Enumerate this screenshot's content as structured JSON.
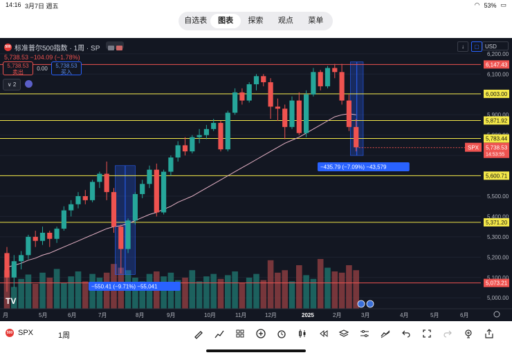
{
  "status": {
    "time": "14:16",
    "date": "3月7日 週五",
    "battery": "53%"
  },
  "tabs": [
    "自选表",
    "图表",
    "探索",
    "观点",
    "菜单"
  ],
  "active_tab": 1,
  "legend": {
    "logo": "500",
    "title": "标准普尔500指数 · 1周 · SP",
    "price_line": "5,738.53  −104.09 (−1.78%)",
    "sell_price": "5,738.53",
    "sell_label": "卖出",
    "spread": "0.00",
    "buy_price": "5,738.53",
    "buy_label": "买入",
    "collapse": "2"
  },
  "currency": "USD",
  "colors": {
    "up": "#26a69a",
    "down": "#ef5350",
    "bg": "#131722",
    "hline_yellow": "#f5e94a",
    "hline_red": "#ef5350",
    "ma": "#e8b4c8",
    "measure": "#2962ff"
  },
  "price_axis": {
    "ticks": [
      "6,200.00",
      "6,100.00",
      "6,000.00",
      "5,900.00",
      "5,800.00",
      "5,700.00",
      "5,600.00",
      "5,500.00",
      "5,400.00",
      "5,300.00",
      "5,200.00",
      "5,100.00",
      "5,000.00"
    ],
    "tick_values": [
      6200,
      6100,
      6000,
      5900,
      5800,
      5700,
      5600,
      5500,
      5400,
      5300,
      5200,
      5100,
      5000
    ]
  },
  "price_labels": [
    {
      "text": "6,147.43",
      "value": 6147.43,
      "style": "red"
    },
    {
      "text": "6,003.00",
      "value": 6003.0,
      "style": "yellow"
    },
    {
      "text": "5,871.92",
      "value": 5871.92,
      "style": "yellow"
    },
    {
      "text": "5,783.44",
      "value": 5783.44,
      "style": "yellow"
    },
    {
      "text": "5,600.71",
      "value": 5600.71,
      "style": "yellow"
    },
    {
      "text": "5,371.20",
      "value": 5371.2,
      "style": "yellow"
    },
    {
      "text": "5,073.21",
      "value": 5073.21,
      "style": "red"
    }
  ],
  "current": {
    "symbol": "SPX",
    "price": "5,738.53",
    "countdown": "14:53:55",
    "value": 5738.53
  },
  "time_axis": [
    "月",
    "5月",
    "6月",
    "7月",
    "8月",
    "9月",
    "10月",
    "11月",
    "12月",
    "2025",
    "2月",
    "3月",
    "4月",
    "5月",
    "6月"
  ],
  "measures": [
    {
      "label": "−550.41 (−9.71%) −55,041"
    },
    {
      "label": "−435.79 (−7.09%) −43,579"
    }
  ],
  "chart_data": {
    "type": "candlestick",
    "series": "SPX weekly",
    "ohlc": [
      [
        5220,
        5250,
        5030,
        5100
      ],
      [
        5100,
        5210,
        5050,
        5180
      ],
      [
        5180,
        5230,
        5140,
        5210
      ],
      [
        5210,
        5310,
        5190,
        5300
      ],
      [
        5300,
        5330,
        5250,
        5280
      ],
      [
        5280,
        5350,
        5260,
        5320
      ],
      [
        5320,
        5330,
        5250,
        5290
      ],
      [
        5290,
        5350,
        5270,
        5340
      ],
      [
        5340,
        5450,
        5330,
        5430
      ],
      [
        5430,
        5480,
        5400,
        5460
      ],
      [
        5460,
        5520,
        5440,
        5500
      ],
      [
        5500,
        5530,
        5460,
        5480
      ],
      [
        5480,
        5580,
        5470,
        5570
      ],
      [
        5570,
        5620,
        5540,
        5610
      ],
      [
        5610,
        5670,
        5480,
        5520
      ],
      [
        5520,
        5540,
        5320,
        5350
      ],
      [
        5350,
        5360,
        5120,
        5240
      ],
      [
        5240,
        5390,
        5220,
        5380
      ],
      [
        5380,
        5520,
        5360,
        5510
      ],
      [
        5510,
        5580,
        5490,
        5560
      ],
      [
        5560,
        5650,
        5540,
        5630
      ],
      [
        5630,
        5660,
        5400,
        5420
      ],
      [
        5420,
        5630,
        5410,
        5620
      ],
      [
        5620,
        5700,
        5600,
        5690
      ],
      [
        5690,
        5770,
        5670,
        5750
      ],
      [
        5750,
        5790,
        5700,
        5720
      ],
      [
        5720,
        5800,
        5710,
        5790
      ],
      [
        5790,
        5830,
        5760,
        5800
      ],
      [
        5800,
        5850,
        5780,
        5830
      ],
      [
        5830,
        5880,
        5820,
        5860
      ],
      [
        5860,
        5870,
        5720,
        5730
      ],
      [
        5730,
        5920,
        5720,
        5910
      ],
      [
        5910,
        6030,
        5900,
        6010
      ],
      [
        6010,
        6030,
        5950,
        5970
      ],
      [
        5970,
        6060,
        5960,
        6050
      ],
      [
        6050,
        6100,
        6020,
        6090
      ],
      [
        6090,
        6100,
        6040,
        6060
      ],
      [
        6060,
        6080,
        5880,
        5940
      ],
      [
        5940,
        5980,
        5870,
        5930
      ],
      [
        5930,
        5950,
        5780,
        5840
      ],
      [
        5840,
        5990,
        5830,
        5970
      ],
      [
        5970,
        6010,
        5800,
        5810
      ],
      [
        5810,
        6020,
        5790,
        6000
      ],
      [
        6000,
        6130,
        5990,
        6110
      ],
      [
        6110,
        6120,
        6020,
        6040
      ],
      [
        6040,
        6140,
        6030,
        6130
      ],
      [
        6130,
        6150,
        6080,
        6110
      ],
      [
        6110,
        6150,
        5950,
        5970
      ],
      [
        5970,
        6000,
        5820,
        5840
      ],
      [
        5840,
        5880,
        5720,
        5740
      ]
    ],
    "volume": [
      62,
      35,
      48,
      55,
      40,
      58,
      50,
      64,
      42,
      52,
      60,
      44,
      56,
      50,
      58,
      72,
      66,
      62,
      50,
      44,
      56,
      60,
      52,
      58,
      46,
      50,
      62,
      44,
      52,
      56,
      48,
      54,
      60,
      42,
      50,
      56,
      46,
      78,
      58,
      62,
      44,
      70,
      54,
      48,
      80,
      66,
      60,
      58,
      70,
      62
    ],
    "ma": [
      5150,
      5160,
      5170,
      5185,
      5195,
      5210,
      5220,
      5235,
      5250,
      5265,
      5280,
      5295,
      5310,
      5325,
      5340,
      5350,
      5355,
      5365,
      5380,
      5395,
      5410,
      5420,
      5435,
      5450,
      5470,
      5485,
      5500,
      5520,
      5540,
      5560,
      5580,
      5600,
      5620,
      5640,
      5660,
      5680,
      5700,
      5720,
      5740,
      5760,
      5775,
      5790,
      5810,
      5830,
      5850,
      5870,
      5890,
      5900,
      5905,
      5900
    ],
    "ylim": [
      4960,
      6230
    ]
  },
  "bottom": {
    "symbol": "SPX",
    "period": "1周"
  },
  "toolbar": [
    "pen-icon",
    "chart-type-icon",
    "apps-icon",
    "add-icon",
    "alarm-icon",
    "candles-icon",
    "rewind-icon",
    "layers-icon",
    "settings-sliders-icon",
    "drawing-icon",
    "undo-icon",
    "fullscreen-icon",
    "redo-icon",
    "add-indicator-icon",
    "share-icon"
  ]
}
